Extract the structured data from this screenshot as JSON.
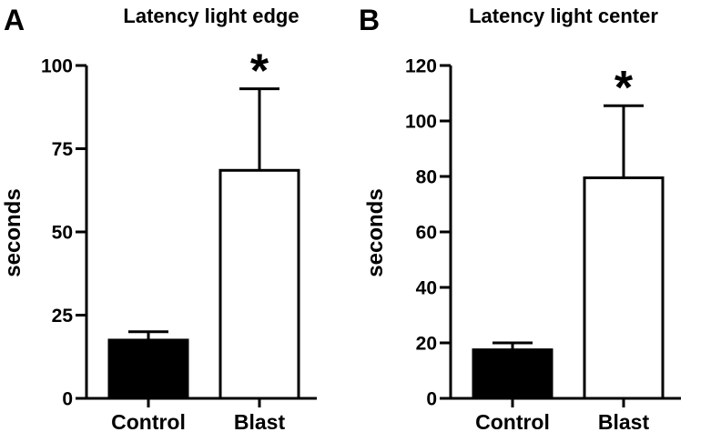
{
  "chart_data": [
    {
      "type": "bar",
      "panel_label": "A",
      "title": "Latency light edge",
      "ylabel": "seconds",
      "xlabel": "",
      "categories": [
        "Control",
        "Blast"
      ],
      "values": [
        17.5,
        68.5
      ],
      "errors": [
        2.5,
        24.5
      ],
      "ylim": [
        0,
        100
      ],
      "yticks": [
        0,
        25,
        50,
        75,
        100
      ],
      "bar_fills": [
        "#000000",
        "#ffffff"
      ],
      "significance": [
        {
          "category": "Blast",
          "mark": "*"
        }
      ],
      "grid": false
    },
    {
      "type": "bar",
      "panel_label": "B",
      "title": "Latency light center",
      "ylabel": "seconds",
      "xlabel": "",
      "categories": [
        "Control",
        "Blast"
      ],
      "values": [
        17.5,
        79.5
      ],
      "errors": [
        2.5,
        26.0
      ],
      "ylim": [
        0,
        120
      ],
      "yticks": [
        0,
        20,
        40,
        60,
        80,
        100,
        120
      ],
      "bar_fills": [
        "#000000",
        "#ffffff"
      ],
      "significance": [
        {
          "category": "Blast",
          "mark": "*"
        }
      ],
      "grid": false
    }
  ]
}
